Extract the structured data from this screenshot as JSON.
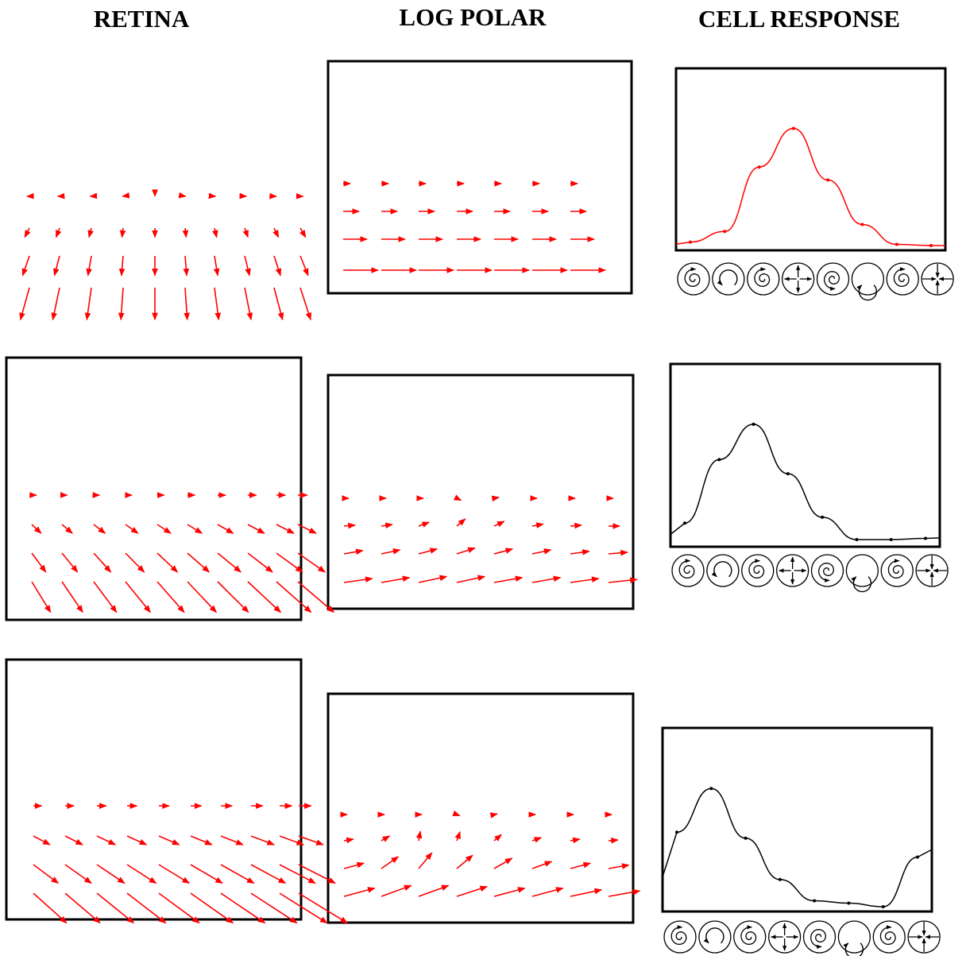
{
  "columns": [
    "RETINA",
    "LOG POLAR",
    "CELL RESPONSE"
  ],
  "colors": {
    "vector": "#ff0000",
    "frame": "#000000",
    "curve_row1": "#ff0000",
    "curve_rows23": "#000000"
  },
  "icons": [
    "spiral-ccw-icon",
    "rotation-ccw-icon",
    "spiral-in-icon",
    "expansion-icon",
    "spiral-cw-icon",
    "rotation-cw-icon",
    "spiral-out-icon",
    "contraction-icon"
  ],
  "rows": [
    {
      "cell_response": {
        "points": [
          0.03,
          0.12,
          0.67,
          1.0,
          0.56,
          0.18,
          0.01,
          0.0
        ],
        "peak_index": 3
      }
    },
    {
      "cell_response": {
        "points": [
          0.16,
          0.7,
          1.0,
          0.58,
          0.21,
          0.02,
          0.02,
          0.03
        ],
        "peak_index": 2
      }
    },
    {
      "cell_response": {
        "points": [
          0.63,
          1.0,
          0.58,
          0.23,
          0.05,
          0.03,
          0.0,
          0.42
        ],
        "peak_index": 1
      }
    }
  ]
}
